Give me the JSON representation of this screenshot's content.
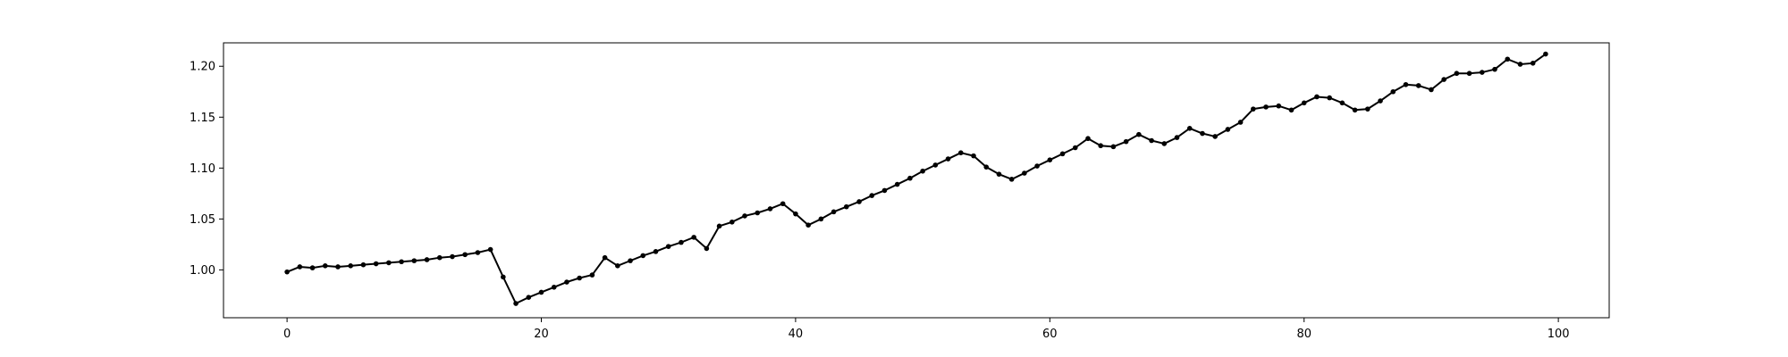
{
  "chart_data": {
    "type": "line",
    "title": "",
    "xlabel": "",
    "ylabel": "",
    "x": [
      0,
      1,
      2,
      3,
      4,
      5,
      6,
      7,
      8,
      9,
      10,
      11,
      12,
      13,
      14,
      15,
      16,
      17,
      18,
      19,
      20,
      21,
      22,
      23,
      24,
      25,
      26,
      27,
      28,
      29,
      30,
      31,
      32,
      33,
      34,
      35,
      36,
      37,
      38,
      39,
      40,
      41,
      42,
      43,
      44,
      45,
      46,
      47,
      48,
      49,
      50,
      51,
      52,
      53,
      54,
      55,
      56,
      57,
      58,
      59,
      60,
      61,
      62,
      63,
      64,
      65,
      66,
      67,
      68,
      69,
      70,
      71,
      72,
      73,
      74,
      75,
      76,
      77,
      78,
      79,
      80,
      81,
      82,
      83,
      84,
      85,
      86,
      87,
      88,
      89,
      90,
      91,
      92,
      93,
      94,
      95,
      96,
      97,
      98,
      99
    ],
    "series": [
      {
        "color": "#000000",
        "marker": "circle",
        "values": [
          0.998,
          1.003,
          1.002,
          1.004,
          1.003,
          1.004,
          1.005,
          1.006,
          1.007,
          1.008,
          1.009,
          1.01,
          1.012,
          1.013,
          1.015,
          1.017,
          1.02,
          0.993,
          0.967,
          0.973,
          0.978,
          0.983,
          0.988,
          0.992,
          0.995,
          1.012,
          1.004,
          1.009,
          1.014,
          1.018,
          1.023,
          1.027,
          1.032,
          1.021,
          1.043,
          1.047,
          1.053,
          1.056,
          1.06,
          1.065,
          1.055,
          1.044,
          1.05,
          1.057,
          1.062,
          1.067,
          1.073,
          1.078,
          1.084,
          1.09,
          1.097,
          1.103,
          1.109,
          1.115,
          1.112,
          1.101,
          1.094,
          1.089,
          1.095,
          1.102,
          1.108,
          1.114,
          1.12,
          1.129,
          1.122,
          1.121,
          1.126,
          1.133,
          1.127,
          1.124,
          1.13,
          1.139,
          1.134,
          1.131,
          1.138,
          1.145,
          1.158,
          1.16,
          1.161,
          1.157,
          1.164,
          1.17,
          1.169,
          1.164,
          1.157,
          1.158,
          1.166,
          1.175,
          1.182,
          1.181,
          1.177,
          1.187,
          1.193,
          1.193,
          1.194,
          1.197,
          1.207,
          1.202,
          1.203,
          1.212
        ]
      }
    ],
    "xlim": [
      -5,
      104
    ],
    "ylim": [
      0.953,
      1.223
    ],
    "xticks": [
      0,
      20,
      40,
      60,
      80,
      100
    ],
    "yticks": [
      1.0,
      1.05,
      1.1,
      1.15,
      1.2
    ],
    "ytick_labels": [
      "1.00",
      "1.05",
      "1.10",
      "1.15",
      "1.20"
    ],
    "grid": false,
    "legend": "none"
  }
}
